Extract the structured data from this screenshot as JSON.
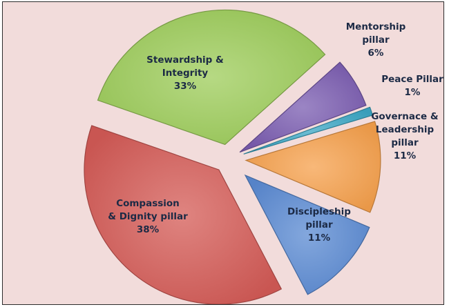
{
  "chart_data": {
    "type": "pie",
    "exploded": true,
    "legend": "none",
    "slices": [
      {
        "key": "mentorship",
        "label_lines": [
          "Mentorship",
          "pillar"
        ],
        "pct_label": "6%",
        "value": 6,
        "color": "#7a5cb0"
      },
      {
        "key": "peace",
        "label_lines": [
          "Peace Pillar"
        ],
        "pct_label": "1%",
        "value": 1,
        "color": "#3ba6c4"
      },
      {
        "key": "governance",
        "label_lines": [
          "Governace &",
          "Leadership",
          "pillar"
        ],
        "pct_label": "11%",
        "value": 11,
        "color": "#f5a04c"
      },
      {
        "key": "discipleship",
        "label_lines": [
          "Discipleship",
          "pillar"
        ],
        "pct_label": "11%",
        "value": 11,
        "color": "#5a8ad2"
      },
      {
        "key": "compassion",
        "label_lines": [
          "Compassion",
          "& Dignity pillar"
        ],
        "pct_label": "38%",
        "value": 38,
        "color": "#d45b56"
      },
      {
        "key": "stewardship",
        "label_lines": [
          "Stewardship &",
          "Integrity"
        ],
        "pct_label": "33%",
        "value": 33,
        "color": "#9dcc5a"
      }
    ]
  }
}
